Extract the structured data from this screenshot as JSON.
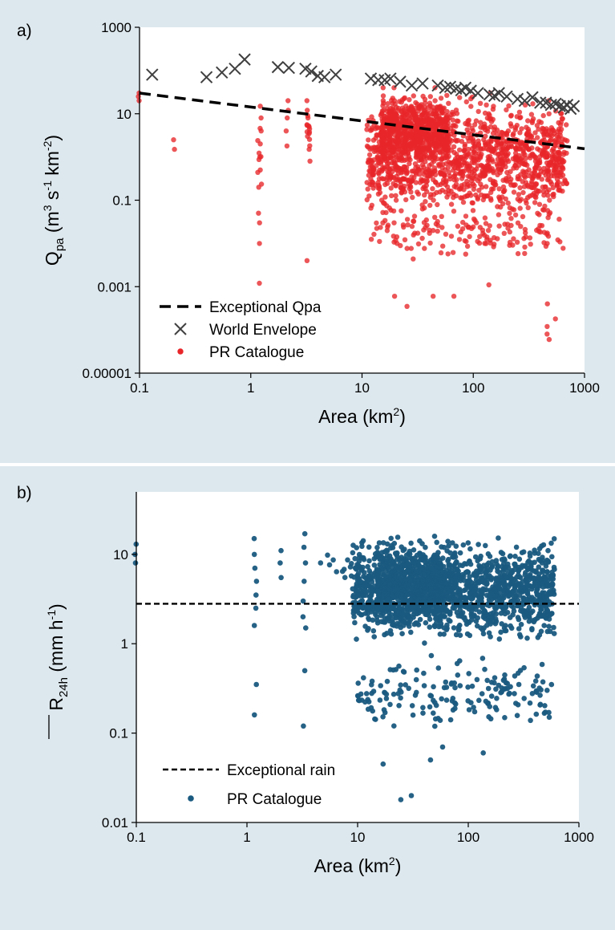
{
  "chart_data": [
    {
      "type": "scatter",
      "panel_label": "a)",
      "xlabel": "Area (km²)",
      "ylabel": "Qpa (m³ s⁻¹ km⁻²)",
      "ylabel_parts": {
        "base": "Q",
        "sub": "pa",
        "p1": " (m",
        "sup1": "3",
        "p2": " s",
        "sup2": "-1",
        "p3": " km",
        "sup3": "-2",
        "p4": ")"
      },
      "xlabel_parts": {
        "p1": "Area (km",
        "sup": "2",
        "p2": ")"
      },
      "x_scale": "log",
      "y_scale": "log",
      "xlim": [
        0.1,
        1000
      ],
      "ylim": [
        1e-05,
        1000
      ],
      "x_ticks": [
        "0.1",
        "1",
        "10",
        "100",
        "1000"
      ],
      "y_ticks": [
        "0.00001",
        "0.001",
        "0.1",
        "10",
        "1000"
      ],
      "grid": false,
      "legend_position": "bottom-left",
      "legend": [
        "Exceptional Qpa",
        "World Envelope",
        "PR Catalogue"
      ],
      "colors": {
        "pr_catalogue": "#e8262a",
        "world_envelope": "#404040",
        "line": "#000000"
      },
      "series": [
        {
          "name": "Exceptional Qpa",
          "kind": "dashed-line",
          "x": [
            0.1,
            1000
          ],
          "y": [
            30,
            1.55
          ]
        },
        {
          "name": "World Envelope",
          "kind": "x-marker",
          "x": [
            0.13,
            0.4,
            0.55,
            0.72,
            0.88,
            1.75,
            2.2,
            3.1,
            3.5,
            4.0,
            4.6,
            5.8,
            12,
            14,
            16,
            18,
            22,
            28,
            35,
            48,
            56,
            62,
            70,
            78,
            85,
            95,
            110,
            140,
            155,
            170,
            200,
            250,
            290,
            340,
            400,
            450,
            500,
            550,
            600,
            650,
            700,
            750,
            800
          ],
          "y": [
            80,
            70,
            90,
            110,
            180,
            120,
            115,
            110,
            95,
            75,
            70,
            80,
            65,
            60,
            60,
            65,
            55,
            45,
            50,
            45,
            40,
            42,
            38,
            35,
            40,
            34,
            30,
            28,
            26,
            30,
            25,
            22,
            20,
            24,
            18,
            18,
            16,
            17,
            15,
            14,
            16,
            13,
            15
          ]
        },
        {
          "name": "PR Catalogue",
          "kind": "dot",
          "clusters": [
            {
              "x": 0.1,
              "y": [
                30,
                20,
                25
              ]
            },
            {
              "x": 0.2,
              "y": [
                2.5,
                1.5
              ]
            },
            {
              "x": 1.2,
              "y": [
                15,
                8,
                4,
                1,
                0.5,
                0.2,
                0.05,
                0.03,
                0.01,
                0.0012
              ]
            },
            {
              "x": 2.1,
              "y": [
                20,
                12,
                8,
                4,
                1.8
              ]
            },
            {
              "x": 3.3,
              "y": [
                20,
                12,
                8,
                5,
                3,
                1.5,
                0.8,
                0.004
              ]
            },
            {
              "x": 15,
              "y": [
                40,
                20,
                10,
                5,
                2,
                1,
                0.5,
                0.1,
                0.03
              ]
            },
            {
              "x": 20,
              "y": [
                40,
                20,
                10,
                5,
                2,
                1,
                0.3,
                0.1,
                0.03,
                0.01,
                0.0006
              ]
            },
            {
              "x": 26,
              "y": [
                0.00035
              ]
            },
            {
              "x": 45,
              "y": [
                40,
                20,
                10,
                5,
                2,
                1,
                0.3,
                0.1,
                0.02,
                0.0006
              ]
            },
            {
              "x": 68,
              "y": [
                0.0006
              ]
            },
            {
              "x": 140,
              "y": [
                30,
                10,
                5,
                2,
                1,
                0.3,
                0.1,
                0.02,
                0.0011
              ]
            },
            {
              "x": 470,
              "y": [
                20,
                10,
                4,
                1,
                0.1,
                0.01,
                0.0004,
                0.00012,
                8e-05,
                6e-05
              ]
            },
            {
              "x": 560,
              "y": [
                0.00018
              ]
            }
          ]
        }
      ]
    },
    {
      "type": "scatter",
      "panel_label": "b)",
      "xlabel": "Area (km²)",
      "ylabel": "R24h (mm h⁻¹)",
      "ylabel_parts": {
        "base": "R",
        "sub": "24h",
        "p1": " (mm h",
        "sup1": "-1",
        "p2": ")"
      },
      "xlabel_parts": {
        "p1": "Area (km",
        "sup": "2",
        "p2": ")"
      },
      "x_scale": "log",
      "y_scale": "log",
      "xlim": [
        0.1,
        1000
      ],
      "ylim": [
        0.01,
        50
      ],
      "x_ticks": [
        "0.1",
        "1",
        "10",
        "100",
        "1000"
      ],
      "y_ticks": [
        "0.01",
        "0.1",
        "1",
        "10"
      ],
      "grid": false,
      "legend_position": "bottom-left",
      "legend": [
        "Exceptional rain",
        "PR Catalogue"
      ],
      "colors": {
        "pr_catalogue": "#1a5a80",
        "line": "#000000"
      },
      "series": [
        {
          "name": "Exceptional rain",
          "kind": "dashed-line",
          "x": [
            0.1,
            1000
          ],
          "y": [
            2.8,
            2.8
          ]
        },
        {
          "name": "PR Catalogue",
          "kind": "dot",
          "clusters": [
            {
              "x": 0.1,
              "y": [
                13,
                10,
                8
              ]
            },
            {
              "x": 1.2,
              "y": [
                15,
                10,
                7,
                5,
                3.5,
                2.5,
                1.6,
                0.35,
                0.16
              ]
            },
            {
              "x": 2.0,
              "y": [
                11,
                8,
                5.5
              ]
            },
            {
              "x": 3.3,
              "y": [
                17,
                12,
                8,
                5,
                3,
                2,
                1.5,
                0.5,
                0.12
              ]
            },
            {
              "x": 17,
              "y": [
                0.045
              ]
            },
            {
              "x": 25,
              "y": [
                0.018
              ]
            },
            {
              "x": 30,
              "y": [
                0.02
              ]
            },
            {
              "x": 45,
              "y": [
                0.05
              ]
            },
            {
              "x": 57,
              "y": [
                0.07
              ]
            },
            {
              "x": 140,
              "y": [
                0.06
              ]
            },
            {
              "x": 520,
              "y": [
                0.17
              ]
            }
          ]
        }
      ]
    }
  ]
}
